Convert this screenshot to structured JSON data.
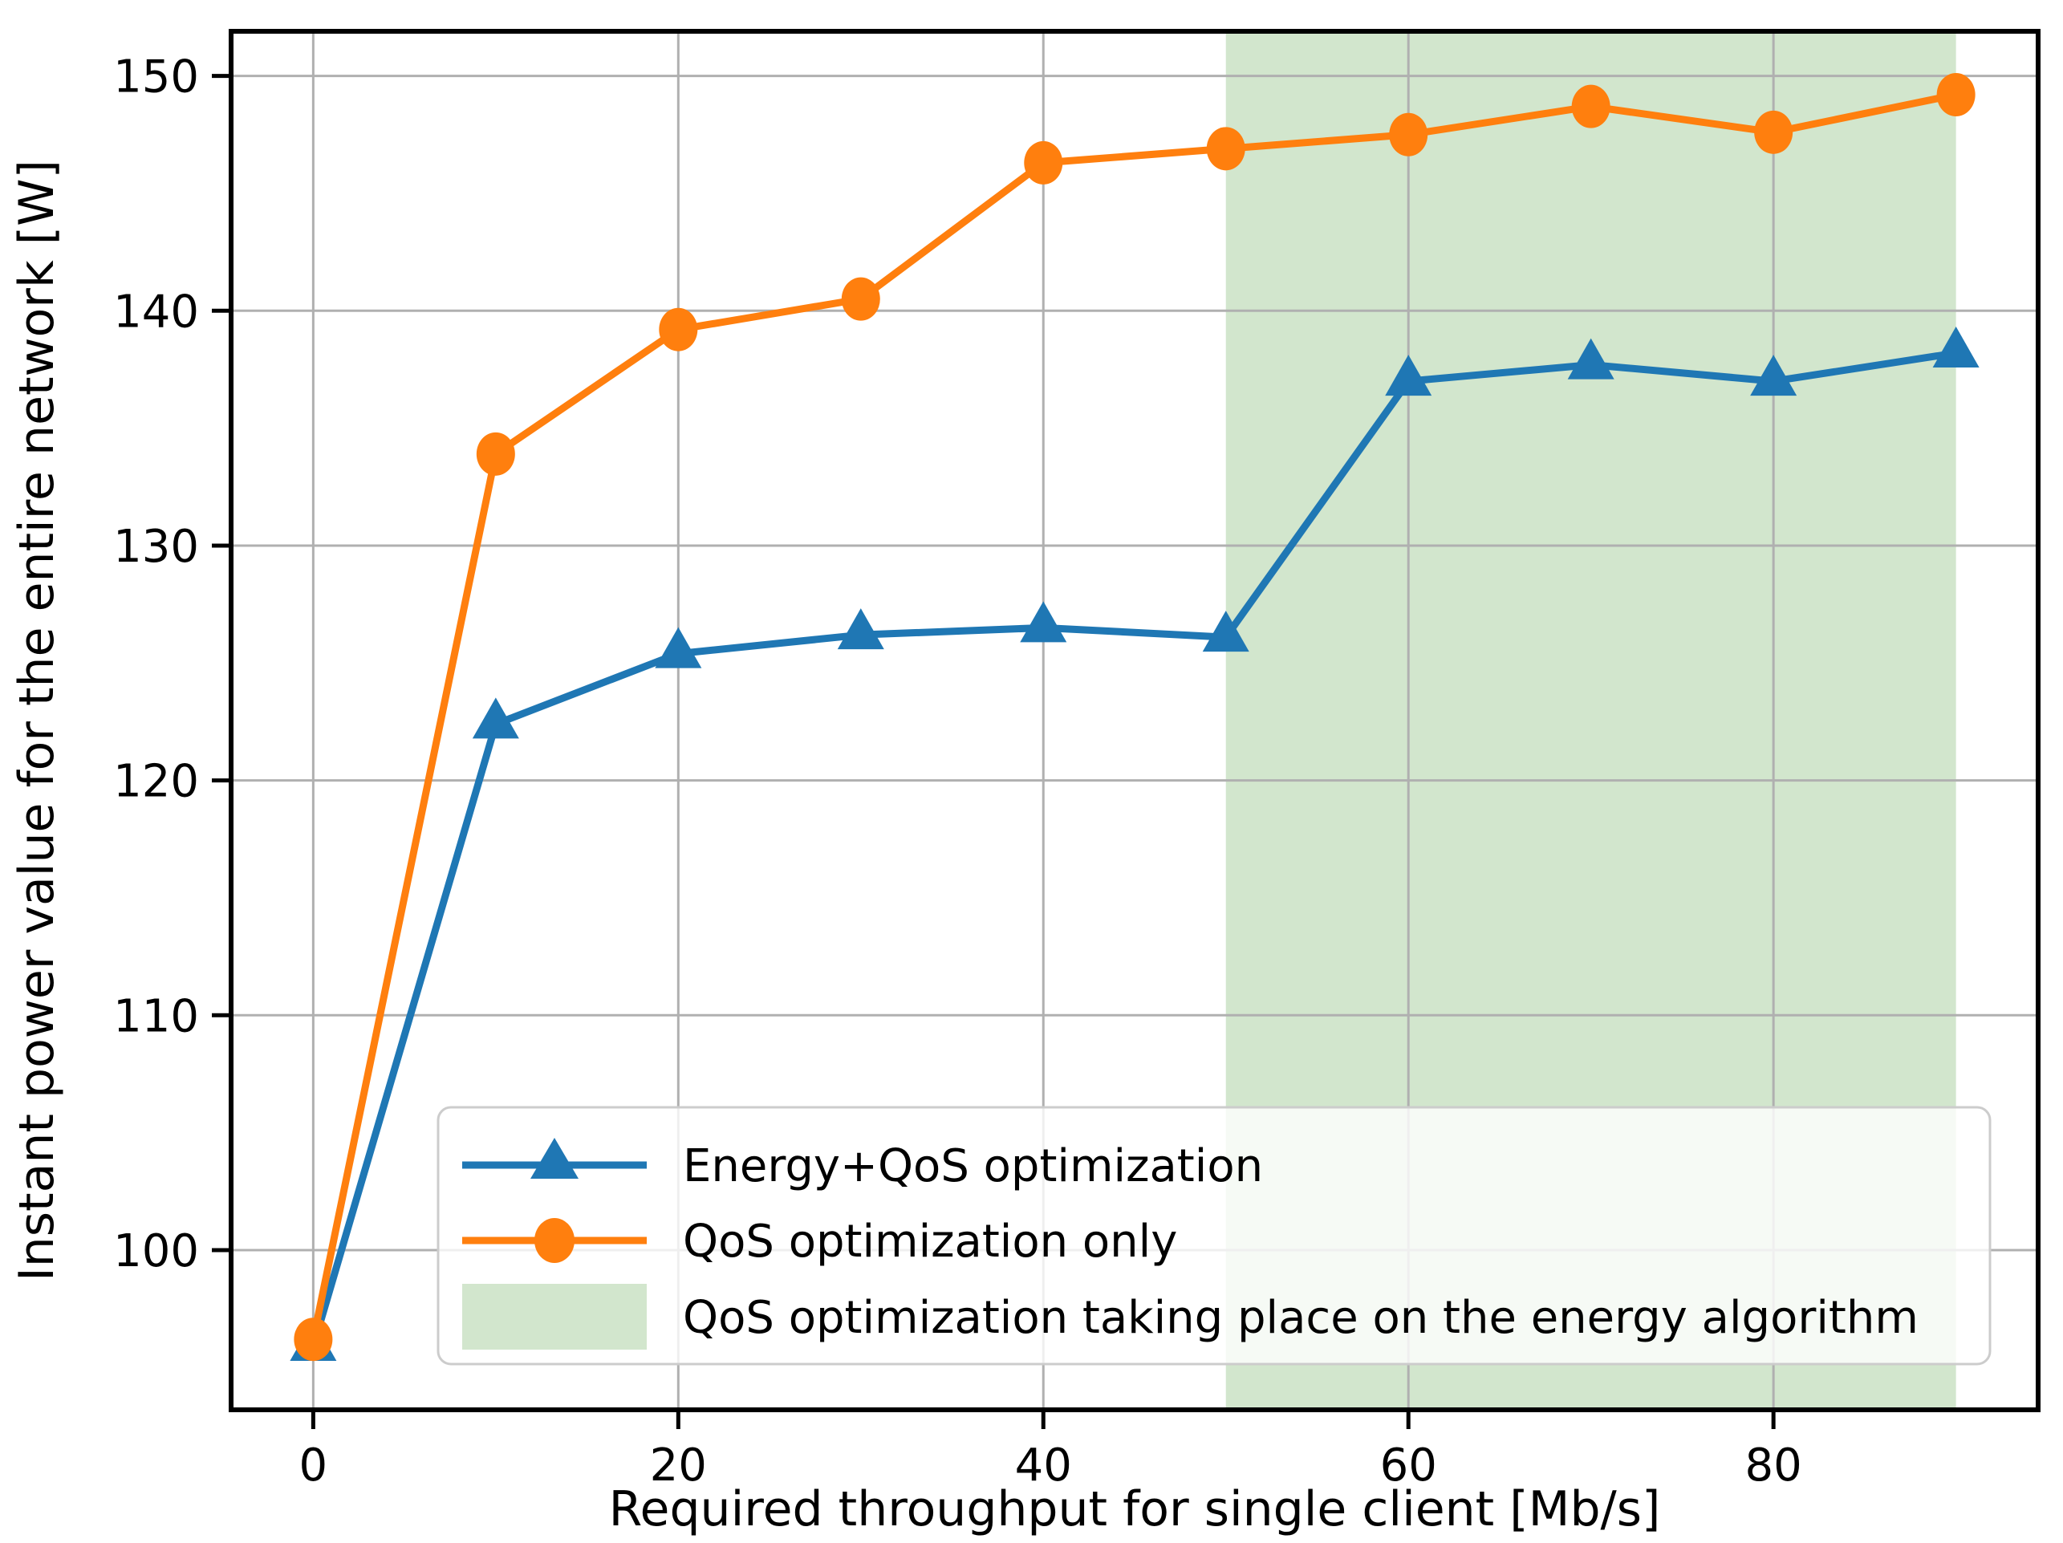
{
  "chart_data": {
    "type": "line",
    "title": "",
    "xlabel": "Required throughput for single client [Mb/s]",
    "ylabel": "Instant power value for the entire network [W]",
    "x": [
      0,
      10,
      20,
      30,
      40,
      50,
      60,
      70,
      80,
      90
    ],
    "series": [
      {
        "name": "Energy+QoS optimization",
        "color": "#1f77b4",
        "marker": "triangle-up",
        "values": [
          95.9,
          122.4,
          125.4,
          126.2,
          126.5,
          126.1,
          137.0,
          137.7,
          137.0,
          138.2
        ]
      },
      {
        "name": "QoS optimization only",
        "color": "#ff7f0e",
        "marker": "circle",
        "values": [
          96.2,
          133.9,
          139.2,
          140.5,
          146.3,
          146.9,
          147.5,
          148.7,
          147.6,
          149.2
        ]
      }
    ],
    "highlight_span": {
      "label": "QoS optimization taking place on the energy algorithm",
      "x_start": 50,
      "x_end": 90,
      "color": "#d2e6cd"
    },
    "legend": [
      "Energy+QoS optimization",
      "QoS optimization only",
      "QoS optimization taking place on the energy algorithm"
    ],
    "legend_position": "lower center inside axes",
    "xticks": [
      0,
      20,
      40,
      60,
      80
    ],
    "yticks": [
      100,
      110,
      120,
      130,
      140,
      150
    ],
    "xlim": [
      -4.5,
      94.5
    ],
    "ylim": [
      93.2,
      151.9
    ],
    "grid": true,
    "grid_color": "#b0b0b0",
    "spine_color": "#000000",
    "background_color": "#ffffff"
  }
}
